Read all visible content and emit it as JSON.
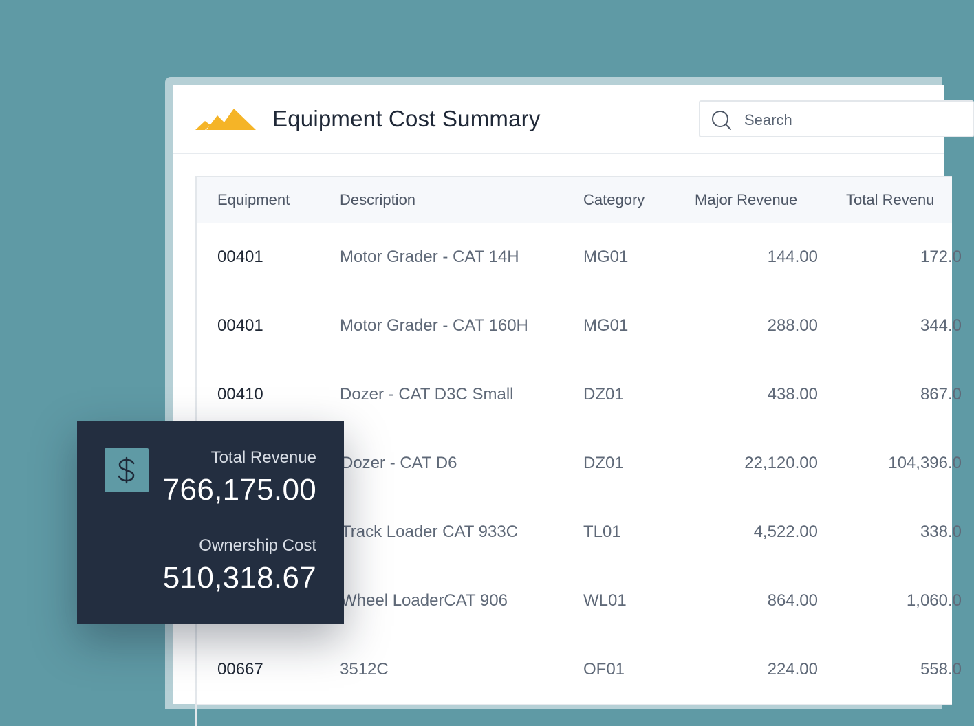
{
  "app": {
    "title": "Equipment Cost Summary",
    "logo": "mountain-peaks-logo",
    "accent_color": "#f5b427",
    "background_color": "#5f9aa5"
  },
  "search": {
    "placeholder": "Search",
    "value": ""
  },
  "table": {
    "columns": [
      "Equipment",
      "Description",
      "Category",
      "Major Revenue",
      "Total Revenu"
    ],
    "rows": [
      {
        "equipment": "00401",
        "description": "Motor Grader - CAT 14H",
        "category": "MG01",
        "major_revenue": "144.00",
        "total_revenue": "172.0"
      },
      {
        "equipment": "00401",
        "description": "Motor Grader - CAT 160H",
        "category": "MG01",
        "major_revenue": "288.00",
        "total_revenue": "344.0"
      },
      {
        "equipment": "00410",
        "description": "Dozer - CAT D3C Small",
        "category": "DZ01",
        "major_revenue": "438.00",
        "total_revenue": "867.0"
      },
      {
        "equipment": "",
        "description": "Dozer - CAT D6",
        "category": "DZ01",
        "major_revenue": "22,120.00",
        "total_revenue": "104,396.0"
      },
      {
        "equipment": "",
        "description": "Track Loader CAT 933C",
        "category": "TL01",
        "major_revenue": "4,522.00",
        "total_revenue": "338.0"
      },
      {
        "equipment": "",
        "description": "Wheel LoaderCAT 906",
        "category": "WL01",
        "major_revenue": "864.00",
        "total_revenue": "1,060.0"
      },
      {
        "equipment": "00667",
        "description": "3512C",
        "category": "OF01",
        "major_revenue": "224.00",
        "total_revenue": "558.0"
      }
    ]
  },
  "summary": {
    "icon": "dollar-icon",
    "total_revenue_label": "Total Revenue",
    "total_revenue_value": "766,175.00",
    "ownership_cost_label": "Ownership Cost",
    "ownership_cost_value": "510,318.67"
  }
}
